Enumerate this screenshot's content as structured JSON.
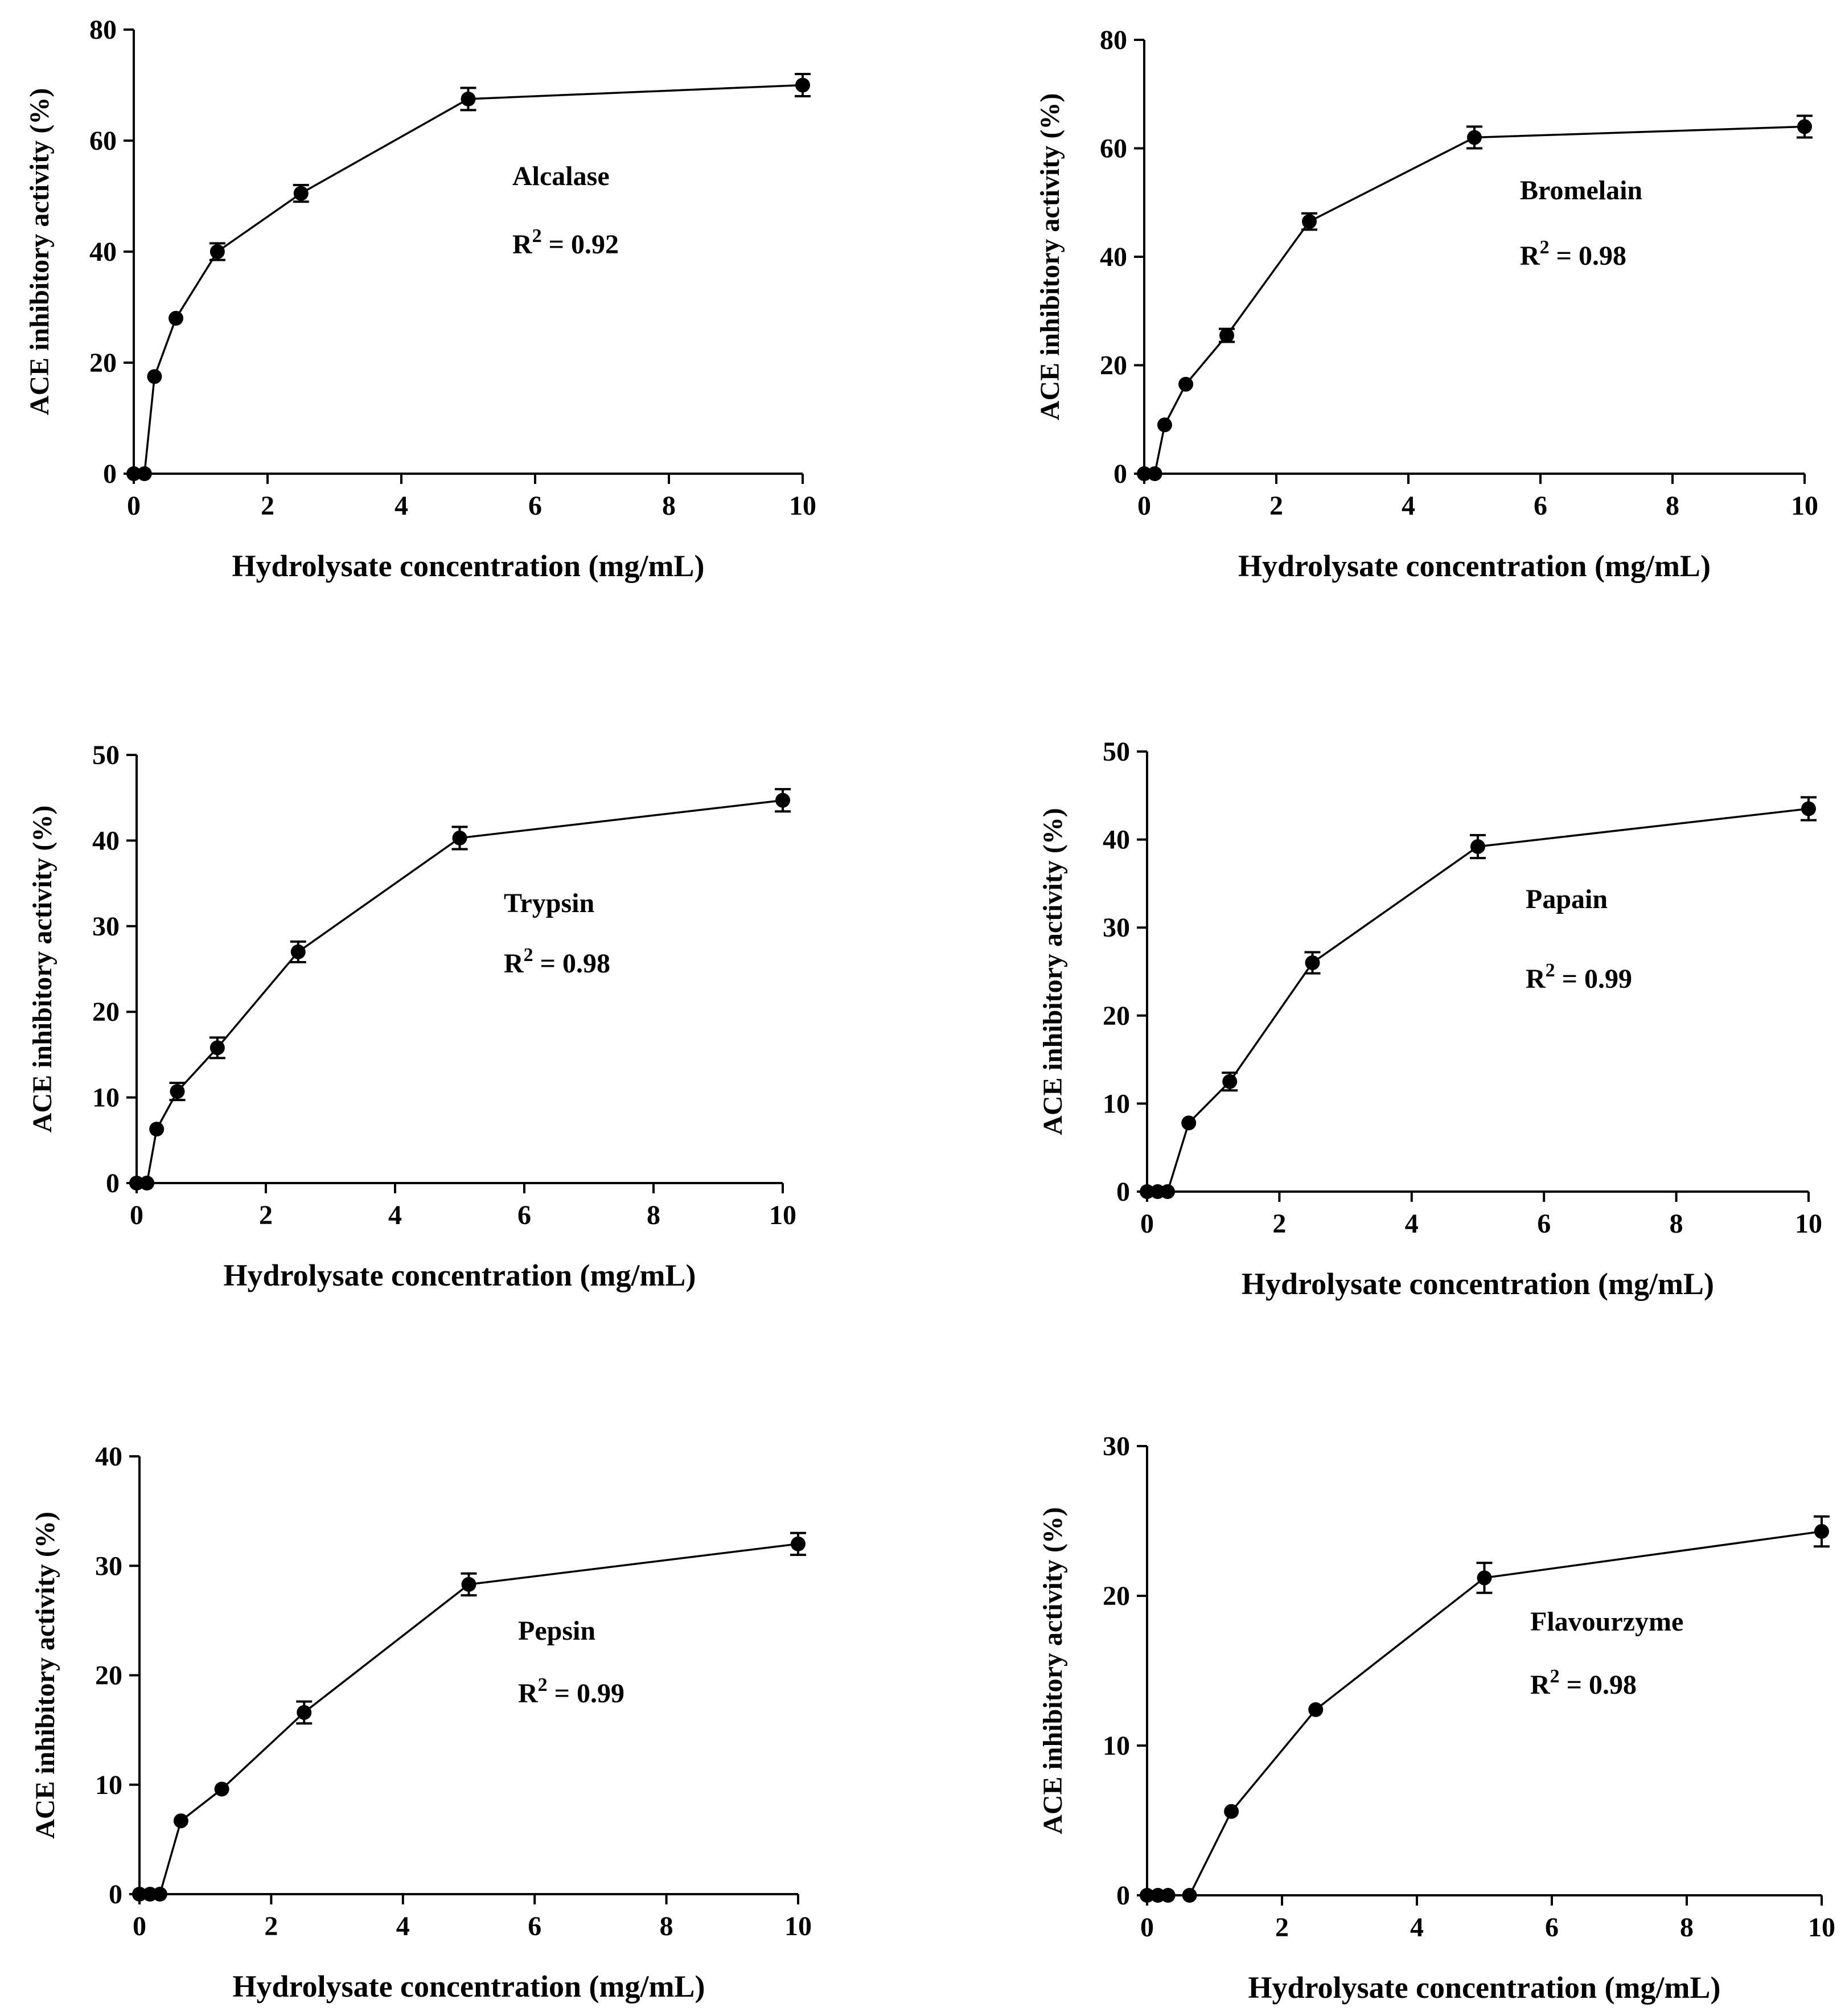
{
  "figure": {
    "x_axis_title": "Hydrolysate concentration (mg/mL)",
    "y_axis_title": "ACE inhibitory activity (%)"
  },
  "chart_data": [
    {
      "type": "line",
      "enzyme": "Alcalase",
      "r2_label": "R",
      "r2_sup": "2",
      "r2_value": " = 0.92",
      "xlabel": "Hydrolysate concentration (mg/mL)",
      "ylabel": "ACE inhibitory activity (%)",
      "xlim": [
        0,
        10
      ],
      "ylim": [
        0,
        80
      ],
      "xticks": [
        0,
        2,
        4,
        6,
        8,
        10
      ],
      "yticks": [
        0,
        20,
        40,
        60,
        80
      ],
      "x": [
        0,
        0.16,
        0.31,
        0.63,
        1.25,
        2.5,
        5,
        10
      ],
      "y": [
        0,
        0,
        17.5,
        28,
        40,
        50.5,
        67.5,
        70
      ],
      "err": [
        0,
        0,
        0,
        0,
        1.5,
        1.5,
        2,
        2
      ]
    },
    {
      "type": "line",
      "enzyme": "Bromelain",
      "r2_label": "R",
      "r2_sup": "2",
      "r2_value": " = 0.98",
      "xlabel": "Hydrolysate concentration (mg/mL)",
      "ylabel": "ACE inhibitory activity (%)",
      "xlim": [
        0,
        10
      ],
      "ylim": [
        0,
        80
      ],
      "xticks": [
        0,
        2,
        4,
        6,
        8,
        10
      ],
      "yticks": [
        0,
        20,
        40,
        60,
        80
      ],
      "x": [
        0,
        0.16,
        0.31,
        0.63,
        1.25,
        2.5,
        5,
        10
      ],
      "y": [
        0,
        0,
        9,
        16.5,
        25.5,
        46.5,
        62,
        64
      ],
      "err": [
        0,
        0,
        0,
        0,
        1.2,
        1.5,
        2,
        2
      ]
    },
    {
      "type": "line",
      "enzyme": "Trypsin",
      "r2_label": "R",
      "r2_sup": "2",
      "r2_value": " = 0.98",
      "xlabel": "Hydrolysate concentration (mg/mL)",
      "ylabel": "ACE inhibitory activity (%)",
      "xlim": [
        0,
        10
      ],
      "ylim": [
        0,
        50
      ],
      "xticks": [
        0,
        2,
        4,
        6,
        8,
        10
      ],
      "yticks": [
        0,
        10,
        20,
        30,
        40,
        50
      ],
      "x": [
        0,
        0.16,
        0.31,
        0.63,
        1.25,
        2.5,
        5,
        10
      ],
      "y": [
        0,
        0,
        6.3,
        10.7,
        15.8,
        27,
        40.3,
        44.7
      ],
      "err": [
        0,
        0,
        0,
        1,
        1.2,
        1.2,
        1.3,
        1.3
      ]
    },
    {
      "type": "line",
      "enzyme": "Papain",
      "r2_label": "R",
      "r2_sup": "2",
      "r2_value": " = 0.99",
      "xlabel": "Hydrolysate concentration (mg/mL)",
      "ylabel": "ACE inhibitory activity (%)",
      "xlim": [
        0,
        10
      ],
      "ylim": [
        0,
        50
      ],
      "xticks": [
        0,
        2,
        4,
        6,
        8,
        10
      ],
      "yticks": [
        0,
        10,
        20,
        30,
        40,
        50
      ],
      "x": [
        0,
        0.16,
        0.31,
        0.63,
        1.25,
        2.5,
        5,
        10
      ],
      "y": [
        0,
        0,
        0,
        7.8,
        12.5,
        26,
        39.2,
        43.5
      ],
      "err": [
        0,
        0,
        0,
        0,
        1,
        1.2,
        1.3,
        1.3
      ]
    },
    {
      "type": "line",
      "enzyme": "Pepsin",
      "r2_label": "R",
      "r2_sup": "2",
      "r2_value": " = 0.99",
      "xlabel": "Hydrolysate concentration (mg/mL)",
      "ylabel": "ACE inhibitory activity (%)",
      "xlim": [
        0,
        10
      ],
      "ylim": [
        0,
        40
      ],
      "xticks": [
        0,
        2,
        4,
        6,
        8,
        10
      ],
      "yticks": [
        0,
        10,
        20,
        30,
        40
      ],
      "x": [
        0,
        0.16,
        0.31,
        0.63,
        1.25,
        2.5,
        5,
        10
      ],
      "y": [
        0,
        0,
        0,
        6.7,
        9.6,
        16.6,
        28.3,
        32
      ],
      "err": [
        0,
        0,
        0,
        0,
        0,
        1,
        1,
        1
      ]
    },
    {
      "type": "line",
      "enzyme": "Flavourzyme",
      "r2_label": "R",
      "r2_sup": "2",
      "r2_value": " = 0.98",
      "xlabel": "Hydrolysate concentration (mg/mL)",
      "ylabel": "ACE inhibitory activity (%)",
      "xlim": [
        0,
        10
      ],
      "ylim": [
        0,
        30
      ],
      "xticks": [
        0,
        2,
        4,
        6,
        8,
        10
      ],
      "yticks": [
        0,
        10,
        20,
        30
      ],
      "x": [
        0,
        0.16,
        0.31,
        0.63,
        1.25,
        2.5,
        5,
        10
      ],
      "y": [
        0,
        0,
        0,
        0,
        5.6,
        12.4,
        21.2,
        24.3
      ],
      "err": [
        0,
        0,
        0,
        0,
        0,
        0,
        1,
        1
      ]
    }
  ]
}
